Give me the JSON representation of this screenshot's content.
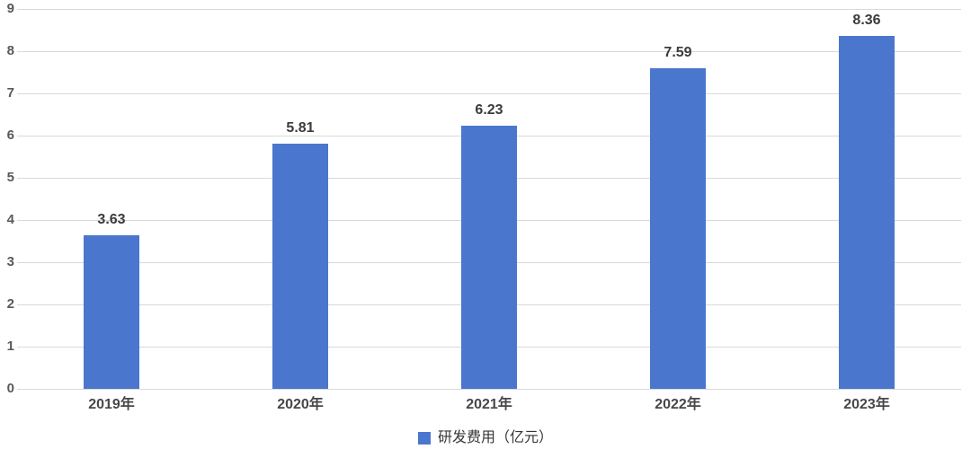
{
  "chart_data": {
    "type": "bar",
    "categories": [
      "2019年",
      "2020年",
      "2021年",
      "2022年",
      "2023年"
    ],
    "series": [
      {
        "name": "研发费用（亿元）",
        "values": [
          3.63,
          5.81,
          6.23,
          7.59,
          8.36
        ]
      }
    ],
    "data_labels": [
      "3.63",
      "5.81",
      "6.23",
      "7.59",
      "8.36"
    ],
    "title": "",
    "xlabel": "",
    "ylabel": "",
    "ylim": [
      0,
      9
    ],
    "ytick_step": 1,
    "ytick_labels": [
      "0",
      "1",
      "2",
      "3",
      "4",
      "5",
      "6",
      "7",
      "8",
      "9"
    ],
    "grid": true,
    "legend_position": "bottom-center",
    "colors": {
      "bar": "#4A76CE",
      "gridline": "#D9D9D9",
      "axis_text": "#595959",
      "data_label": "#3B3B3B",
      "background": "#FFFFFF"
    }
  }
}
